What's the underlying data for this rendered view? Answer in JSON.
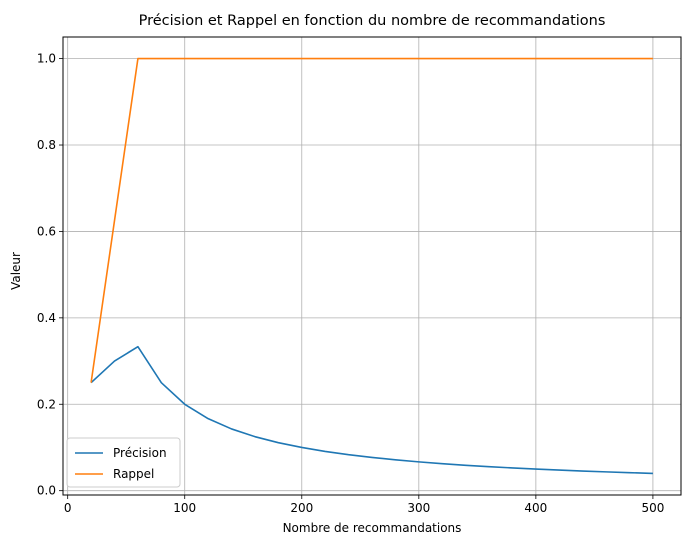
{
  "chart_data": {
    "type": "line",
    "title": "Précision et Rappel en fonction du nombre de recommandations",
    "xlabel": "Nombre de recommandations",
    "ylabel": "Valeur",
    "xlim": [
      -4,
      524
    ],
    "ylim": [
      -0.01,
      1.05
    ],
    "xticks": [
      0,
      100,
      200,
      300,
      400,
      500
    ],
    "yticks": [
      0.0,
      0.2,
      0.4,
      0.6,
      0.8,
      1.0
    ],
    "grid": true,
    "legend": "lower-left",
    "x": [
      20,
      40,
      60,
      80,
      100,
      120,
      140,
      160,
      180,
      200,
      220,
      240,
      260,
      280,
      300,
      320,
      340,
      360,
      380,
      400,
      420,
      440,
      460,
      480,
      500
    ],
    "series": [
      {
        "name": "Précision",
        "color": "#1f77b4",
        "values": [
          0.25,
          0.3,
          0.3333,
          0.25,
          0.2,
          0.1667,
          0.1429,
          0.125,
          0.1111,
          0.1,
          0.0909,
          0.0833,
          0.0769,
          0.0714,
          0.0667,
          0.0625,
          0.0588,
          0.0556,
          0.0526,
          0.05,
          0.0476,
          0.0455,
          0.0435,
          0.0417,
          0.04
        ]
      },
      {
        "name": "Rappel",
        "color": "#ff7f0e",
        "values": [
          0.25,
          0.625,
          1.0,
          1.0,
          1.0,
          1.0,
          1.0,
          1.0,
          1.0,
          1.0,
          1.0,
          1.0,
          1.0,
          1.0,
          1.0,
          1.0,
          1.0,
          1.0,
          1.0,
          1.0,
          1.0,
          1.0,
          1.0,
          1.0,
          1.0
        ]
      }
    ]
  }
}
